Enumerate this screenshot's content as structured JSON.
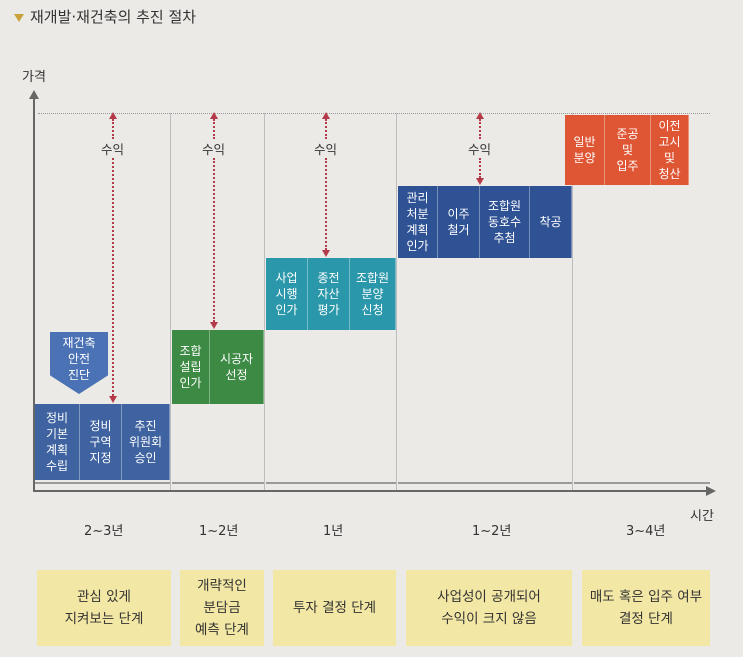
{
  "header": {
    "title": "재개발·재건축의 추진 절차"
  },
  "axes": {
    "y_label": "가격",
    "x_label": "시간"
  },
  "inspection": {
    "label": "재건축\n안전\n진단"
  },
  "groups": [
    {
      "boxes": [
        "정비\n기본\n계획\n수립",
        "정비\n구역\n지정",
        "추진\n위원회\n승인"
      ],
      "profit": "수익",
      "period": "2~3년",
      "stage": "관심 있게\n지켜보는 단계"
    },
    {
      "boxes": [
        "조합\n설립\n인가",
        "시공자\n선정"
      ],
      "profit": "수익",
      "period": "1~2년",
      "stage": "개략적인\n분담금\n예측 단계"
    },
    {
      "boxes": [
        "사업\n시행\n인가",
        "종전\n자산\n평가",
        "조합원\n분양\n신청"
      ],
      "profit": "수익",
      "period": "1년",
      "stage": "투자 결정 단계"
    },
    {
      "boxes": [
        "관리\n처분\n계획\n인가",
        "이주\n철거",
        "조합원\n동호수\n추첨",
        "착공"
      ],
      "profit": "수익",
      "period": "1~2년",
      "stage": "사업성이 공개되어\n수익이 크지 않음"
    },
    {
      "boxes": [
        "일반\n분양",
        "준공\n및\n입주",
        "이전\n고시\n및\n청산"
      ],
      "period": "3~4년",
      "stage": "매도 혹은 입주 여부\n결정 단계"
    }
  ],
  "colors": {
    "blue": "#3e63a0",
    "green": "#3d8a44",
    "teal": "#2a97aa",
    "navy": "#2f5294",
    "red": "#df5634",
    "stage_bg": "#f2e7a4"
  }
}
